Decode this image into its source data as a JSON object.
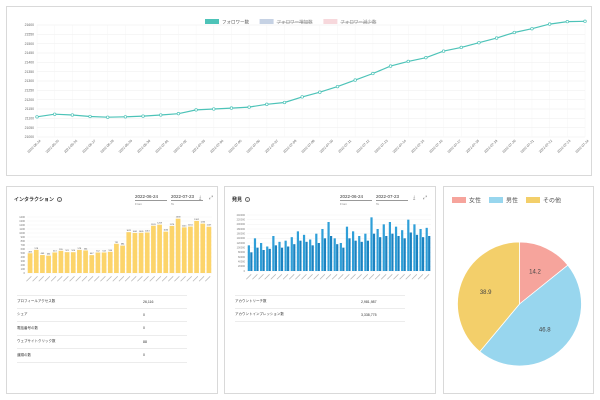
{
  "followers": {
    "legend": [
      {
        "label": "フォロワー数",
        "color": "#4dc3b8",
        "struck": false
      },
      {
        "label": "フォロワー増加数",
        "color": "#c6d2e4",
        "struck": true
      },
      {
        "label": "フォロワー減少数",
        "color": "#f7d8dc",
        "struck": true
      }
    ]
  },
  "engagement": {
    "title": "インタラクション",
    "date_from": "2022-06-24",
    "date_to": "2022-07-23",
    "from_label": "From",
    "to_label": "To",
    "stats": [
      {
        "label": "プロフィールアクセス数",
        "value": "26,116"
      },
      {
        "label": "シェア",
        "value": "0"
      },
      {
        "label": "電話番号の数",
        "value": "0"
      },
      {
        "label": "ウェブサイトクリック数",
        "value": "88"
      },
      {
        "label": "道順の数",
        "value": "0"
      }
    ]
  },
  "discovery": {
    "title": "発見",
    "date_from": "2022-06-24",
    "date_to": "2022-07-23",
    "from_label": "From",
    "to_label": "To",
    "stats": [
      {
        "label": "アカウントリーチ数",
        "value": "2,981,987"
      },
      {
        "label": "アカウントインプレッション数",
        "value": "3,338,775"
      }
    ]
  },
  "gender": {
    "legend": [
      {
        "label": "女性",
        "color": "#f6a49c"
      },
      {
        "label": "男性",
        "color": "#98d6ee"
      },
      {
        "label": "その他",
        "color": "#f3cf6a"
      }
    ]
  },
  "chart_data": [
    {
      "type": "line",
      "title": "",
      "series": [
        {
          "name": "フォロワー数",
          "color": "#4dc3b8",
          "values": [
            21108,
            21122,
            21118,
            21110,
            21106,
            21108,
            21112,
            21118,
            21125,
            21145,
            21150,
            21155,
            21160,
            21175,
            21185,
            21215,
            21240,
            21270,
            21305,
            21340,
            21380,
            21405,
            21425,
            21460,
            21480,
            21505,
            21530,
            21560,
            21580,
            21605,
            21618,
            21620
          ]
        }
      ],
      "categories": [
        "2022-06-23",
        "2022-06-24",
        "2022-06-25",
        "2022-06-26",
        "2022-06-27",
        "2022-06-28",
        "2022-06-29",
        "2022-06-30",
        "2022-07-01",
        "2022-07-02",
        "2022-07-03",
        "2022-07-04",
        "2022-07-05",
        "2022-07-06",
        "2022-07-07",
        "2022-07-08",
        "2022-07-09",
        "2022-07-10",
        "2022-07-11",
        "2022-07-12",
        "2022-07-13",
        "2022-07-14",
        "2022-07-15",
        "2022-07-16",
        "2022-07-17",
        "2022-07-18",
        "2022-07-19",
        "2022-07-20",
        "2022-07-21",
        "2022-07-22",
        "2022-07-23",
        "2022-07-24"
      ],
      "x_labels": [
        "2022-06-24",
        "2022-06-25",
        "2022-06-26",
        "2022-06-27",
        "2022-06-28",
        "2022-06-29",
        "2022-06-30",
        "2022-07-01",
        "2022-07-02",
        "2022-07-03",
        "2022-07-04",
        "2022-07-05",
        "2022-07-06",
        "2022-07-07",
        "2022-07-08",
        "2022-07-09",
        "2022-07-10",
        "2022-07-11",
        "2022-07-12",
        "2022-07-13",
        "2022-07-14",
        "2022-07-15",
        "2022-07-16",
        "2022-07-17",
        "2022-07-18",
        "2022-07-19",
        "2022-07-20",
        "2022-07-21",
        "2022-07-22",
        "2022-07-23",
        "2022-07-24"
      ],
      "y_ticks": [
        21000,
        21050,
        21100,
        21150,
        21200,
        21250,
        21300,
        21350,
        21400,
        21450,
        21500,
        21550,
        21600
      ],
      "ylim": [
        21000,
        21600
      ],
      "grid": true
    },
    {
      "type": "bar",
      "title": "",
      "color": "#fcd46a",
      "values": [
        493,
        578,
        449,
        434,
        513,
        555,
        521,
        520,
        578,
        564,
        447,
        512,
        513,
        530,
        731,
        684,
        1021,
        1001,
        1005,
        1013,
        1181,
        1208,
        1034,
        1176,
        1358,
        1141,
        1161,
        1302,
        1234,
        1157
      ],
      "y_ticks": [
        0,
        100,
        200,
        300,
        400,
        500,
        600,
        700,
        800,
        900,
        1000,
        1100,
        1200,
        1300,
        1400
      ],
      "ylim": [
        0,
        1400
      ],
      "data_labels": [
        "493",
        "578",
        "449",
        "434",
        "513",
        "555",
        "521",
        "520",
        "578",
        "564",
        "447",
        "512",
        "513",
        "530",
        "731",
        "684",
        "1021",
        "1001",
        "1005",
        "1013",
        "1181",
        "1208",
        "1034",
        "1176",
        "1358",
        "1141",
        "1161",
        "1302",
        "1234",
        "1157"
      ]
    },
    {
      "type": "bar",
      "title": "",
      "color": "#2f9fd8",
      "values": [
        110000,
        140000,
        120000,
        105000,
        150000,
        125000,
        130000,
        145000,
        170000,
        155000,
        135000,
        160000,
        180000,
        210000,
        140000,
        120000,
        190000,
        170000,
        150000,
        160000,
        230000,
        180000,
        200000,
        210000,
        190000,
        175000,
        220000,
        200000,
        180000,
        185000
      ],
      "values_secondary": [
        80000,
        100000,
        90000,
        95000,
        110000,
        100000,
        105000,
        115000,
        130000,
        125000,
        110000,
        120000,
        140000,
        150000,
        115000,
        100000,
        140000,
        130000,
        125000,
        130000,
        160000,
        145000,
        150000,
        160000,
        150000,
        140000,
        165000,
        155000,
        145000,
        150000
      ],
      "y_ticks": [
        0,
        20000,
        40000,
        60000,
        80000,
        100000,
        120000,
        140000,
        160000,
        180000,
        200000,
        220000,
        240000
      ],
      "ylim": [
        0,
        240000
      ]
    },
    {
      "type": "pie",
      "title": "",
      "labels": [
        "女性",
        "男性",
        "その他"
      ],
      "values": [
        14.2,
        46.8,
        38.9
      ],
      "colors": [
        "#f6a49c",
        "#98d6ee",
        "#f3cf6a"
      ]
    }
  ]
}
